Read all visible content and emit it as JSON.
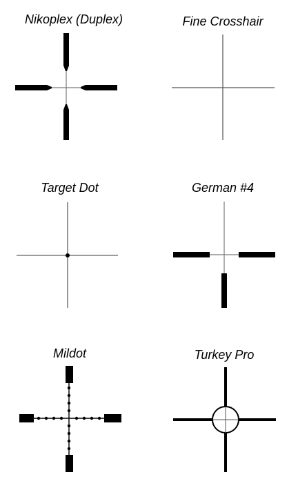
{
  "reticles": [
    {
      "label": "Nikoplex (Duplex)",
      "icon": "duplex-reticle-icon"
    },
    {
      "label": "Fine Crosshair",
      "icon": "fine-crosshair-reticle-icon"
    },
    {
      "label": "Target Dot",
      "icon": "target-dot-reticle-icon"
    },
    {
      "label": "German #4",
      "icon": "german-4-reticle-icon"
    },
    {
      "label": "Mildot",
      "icon": "mildot-reticle-icon"
    },
    {
      "label": "Turkey Pro",
      "icon": "turkey-pro-reticle-icon"
    }
  ],
  "colors": {
    "line": "#7a7a7a",
    "post": "#000000"
  }
}
